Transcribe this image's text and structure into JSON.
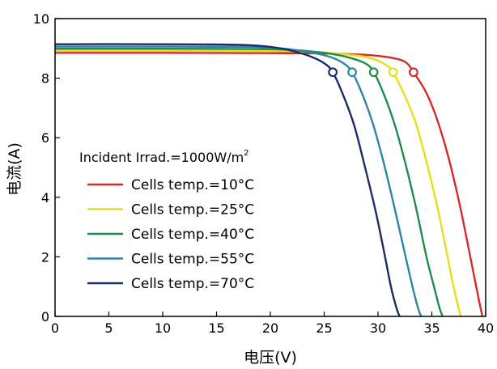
{
  "chart_data": {
    "type": "line",
    "xlabel": "电压(V)",
    "ylabel": "电流(A)",
    "xlim": [
      0,
      40
    ],
    "ylim": [
      0,
      10
    ],
    "xticks": [
      0,
      5,
      10,
      15,
      20,
      25,
      30,
      35,
      40
    ],
    "yticks": [
      0,
      2,
      4,
      6,
      8,
      10
    ],
    "grid": false,
    "legend_title": {
      "main": "Incident Irrad.=1000W/m",
      "sup": "2"
    },
    "legend_position": "left-center",
    "series": [
      {
        "name": "Cells temp.=10°C",
        "color": "#d42a2a",
        "x": [
          0,
          10,
          20,
          25,
          29,
          31,
          32.5,
          33.3,
          34.5,
          35.5,
          36.5,
          37.5,
          38.3,
          38.9,
          39.4,
          39.7
        ],
        "y": [
          8.85,
          8.85,
          8.84,
          8.83,
          8.78,
          8.7,
          8.55,
          8.2,
          7.5,
          6.6,
          5.4,
          3.9,
          2.5,
          1.4,
          0.5,
          0
        ],
        "mpp": {
          "x": 33.3,
          "y": 8.2
        }
      },
      {
        "name": "Cells temp.=25°C",
        "color": "#e6df15",
        "x": [
          0,
          10,
          20,
          24,
          27,
          29,
          30.5,
          31.4,
          32.5,
          33.5,
          34.5,
          35.5,
          36.3,
          36.9,
          37.4,
          37.7
        ],
        "y": [
          8.92,
          8.92,
          8.91,
          8.88,
          8.8,
          8.7,
          8.5,
          8.2,
          7.4,
          6.5,
          5.2,
          3.7,
          2.3,
          1.2,
          0.4,
          0
        ],
        "mpp": {
          "x": 31.4,
          "y": 8.2
        }
      },
      {
        "name": "Cells temp.=40°C",
        "color": "#1f8c4a",
        "x": [
          0,
          10,
          18,
          22,
          25,
          27,
          28.8,
          29.6,
          30.5,
          31.5,
          32.5,
          33.5,
          34.5,
          35.2,
          35.7,
          36.0
        ],
        "y": [
          8.99,
          8.99,
          8.98,
          8.95,
          8.85,
          8.72,
          8.5,
          8.2,
          7.5,
          6.5,
          5.2,
          3.7,
          2.0,
          1.0,
          0.3,
          0
        ],
        "mpp": {
          "x": 29.6,
          "y": 8.2
        }
      },
      {
        "name": "Cells temp.=55°C",
        "color": "#2a86a8",
        "x": [
          0,
          10,
          18,
          21,
          23.5,
          25.5,
          26.8,
          27.6,
          28.5,
          29.5,
          30.5,
          31.5,
          32.5,
          33.2,
          33.7,
          34.0
        ],
        "y": [
          9.06,
          9.06,
          9.05,
          9.0,
          8.88,
          8.72,
          8.5,
          8.2,
          7.5,
          6.5,
          5.2,
          3.7,
          2.1,
          1.0,
          0.3,
          0
        ],
        "mpp": {
          "x": 27.6,
          "y": 8.2
        }
      },
      {
        "name": "Cells temp.=70°C",
        "color": "#1a2e66",
        "x": [
          0,
          10,
          17,
          20,
          22,
          23.8,
          25,
          25.8,
          26.8,
          27.8,
          28.8,
          29.8,
          30.6,
          31.2,
          31.7,
          32.0
        ],
        "y": [
          9.14,
          9.14,
          9.12,
          9.05,
          8.92,
          8.72,
          8.5,
          8.2,
          7.4,
          6.4,
          5.0,
          3.5,
          2.1,
          1.0,
          0.3,
          0
        ],
        "mpp": {
          "x": 25.8,
          "y": 8.2
        }
      }
    ]
  }
}
